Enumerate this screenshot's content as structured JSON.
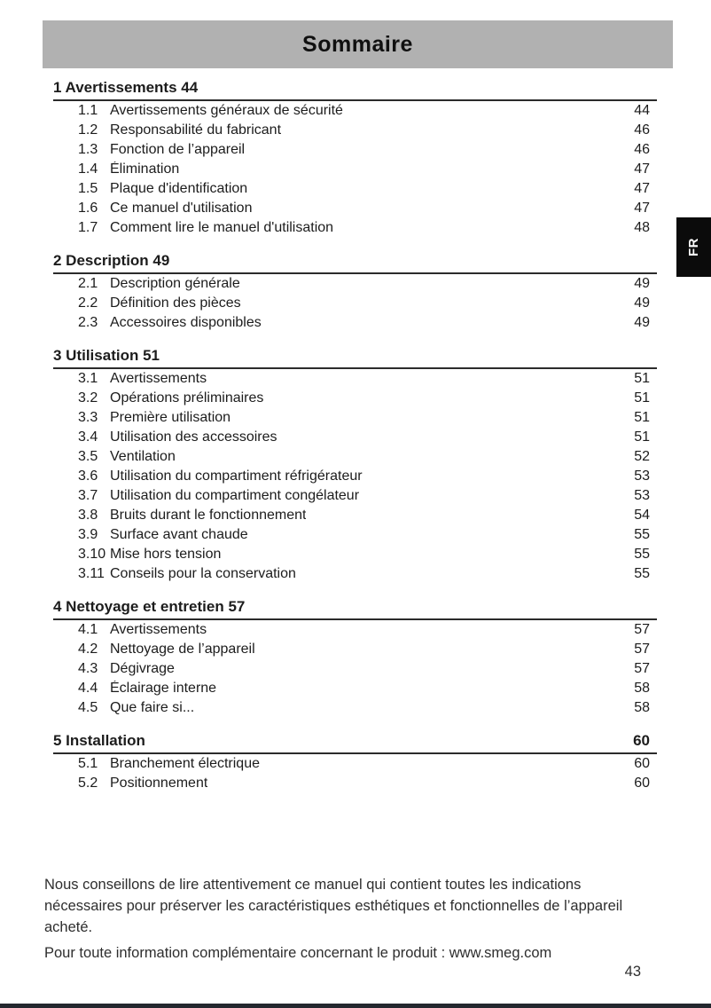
{
  "page": {
    "title": "Sommaire",
    "language_tab": "FR",
    "page_number": "43"
  },
  "colors": {
    "header_bar": "#b1b1b1",
    "language_tab": "#0b0b0b",
    "bottom_bar": "#23272e",
    "rule": "#2b2b2b"
  },
  "toc": {
    "sections": [
      {
        "number": "1",
        "title": "Avertissements",
        "page": "44",
        "page_aligned_right": false,
        "items": [
          {
            "number": "1.1",
            "label": "Avertissements généraux de sécurité",
            "page": "44"
          },
          {
            "number": "1.2",
            "label": "Responsabilité du fabricant",
            "page": "46"
          },
          {
            "number": "1.3",
            "label": "Fonction de l’appareil",
            "page": "46"
          },
          {
            "number": "1.4",
            "label": "Élimination",
            "page": "47"
          },
          {
            "number": "1.5",
            "label": "Plaque d'identification",
            "page": "47"
          },
          {
            "number": "1.6",
            "label": "Ce manuel d'utilisation",
            "page": "47"
          },
          {
            "number": "1.7",
            "label": "Comment lire le manuel d'utilisation",
            "page": "48"
          }
        ]
      },
      {
        "number": "2",
        "title": "Description",
        "page": "49",
        "page_aligned_right": false,
        "items": [
          {
            "number": "2.1",
            "label": "Description générale",
            "page": "49"
          },
          {
            "number": "2.2",
            "label": "Définition des pièces",
            "page": "49"
          },
          {
            "number": "2.3",
            "label": "Accessoires disponibles",
            "page": "49"
          }
        ]
      },
      {
        "number": "3",
        "title": "Utilisation",
        "page": "51",
        "page_aligned_right": false,
        "items": [
          {
            "number": "3.1",
            "label": "Avertissements",
            "page": "51"
          },
          {
            "number": "3.2",
            "label": "Opérations préliminaires",
            "page": "51"
          },
          {
            "number": "3.3",
            "label": "Première utilisation",
            "page": "51"
          },
          {
            "number": "3.4",
            "label": "Utilisation des accessoires",
            "page": "51"
          },
          {
            "number": "3.5",
            "label": "Ventilation",
            "page": "52"
          },
          {
            "number": "3.6",
            "label": "Utilisation du compartiment réfrigérateur",
            "page": "53"
          },
          {
            "number": "3.7",
            "label": "Utilisation du compartiment congélateur",
            "page": "53"
          },
          {
            "number": "3.8",
            "label": "Bruits durant le fonctionnement",
            "page": "54"
          },
          {
            "number": "3.9",
            "label": "Surface avant chaude",
            "page": "55"
          },
          {
            "number": "3.10",
            "label": "Mise hors tension",
            "page": "55"
          },
          {
            "number": "3.11",
            "label": "Conseils pour la conservation",
            "page": "55"
          }
        ]
      },
      {
        "number": "4",
        "title": "Nettoyage et entretien",
        "page": "57",
        "page_aligned_right": false,
        "items": [
          {
            "number": "4.1",
            "label": "Avertissements",
            "page": "57"
          },
          {
            "number": "4.2",
            "label": "Nettoyage de l’appareil",
            "page": "57"
          },
          {
            "number": "4.3",
            "label": "Dégivrage",
            "page": "57"
          },
          {
            "number": "4.4",
            "label": "Éclairage interne",
            "page": "58"
          },
          {
            "number": "4.5",
            "label": "Que faire si...",
            "page": "58"
          }
        ]
      },
      {
        "number": "5",
        "title": "Installation",
        "page": "60",
        "page_aligned_right": true,
        "items": [
          {
            "number": "5.1",
            "label": "Branchement électrique",
            "page": "60"
          },
          {
            "number": "5.2",
            "label": "Positionnement",
            "page": "60"
          }
        ]
      }
    ]
  },
  "footer": {
    "paragraph1": "Nous conseillons de lire attentivement ce manuel qui contient toutes les indications nécessaires pour préserver les caractéristiques esthétiques et fonctionnelles de l’appareil acheté.",
    "paragraph2": "Pour toute information complémentaire concernant le produit : www.smeg.com"
  }
}
